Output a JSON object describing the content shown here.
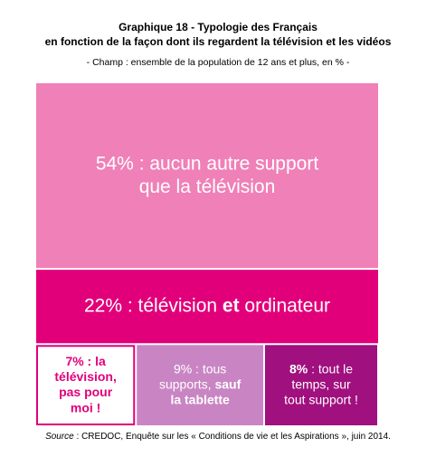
{
  "chart_data": {
    "type": "treemap",
    "title": [
      "Graphique 18 - Typologie des Français",
      "en fonction de la façon dont ils regardent la télévision et les vidéos"
    ],
    "subtitle": "- Champ : ensemble de la population de 12 ans et plus, en % -",
    "source": [
      {
        "text": "Source",
        "italic": true
      },
      {
        "text": " : CREDOC, Enquête sur les « Conditions de vie et les Aspirations », juin 2014.",
        "italic": false
      }
    ],
    "items": [
      {
        "value": 54,
        "value_label": "54%",
        "color": "#f080b8",
        "text_color": "#ffffff",
        "border": null,
        "label_bold": false,
        "lines": [
          [
            {
              "text": " : aucun autre support",
              "bold": false
            }
          ],
          [
            {
              "text": "que la télévision",
              "bold": false
            }
          ]
        ]
      },
      {
        "value": 22,
        "value_label": "22%",
        "color": "#e2007a",
        "text_color": "#ffffff",
        "border": null,
        "label_bold": false,
        "lines": [
          [
            {
              "text": " : télévision ",
              "bold": false
            },
            {
              "text": "et",
              "bold": true
            },
            {
              "text": " ordinateur",
              "bold": false
            }
          ]
        ]
      },
      {
        "value": 7,
        "value_label": "7%",
        "color": "#ffffff",
        "text_color": "#e2007a",
        "border": "#e2007a",
        "label_bold": true,
        "lines": [
          [
            {
              "text": " : la",
              "bold": true
            }
          ],
          [
            {
              "text": "télévision,",
              "bold": true
            }
          ],
          [
            {
              "text": "pas pour",
              "bold": true
            }
          ],
          [
            {
              "text": "moi !",
              "bold": true
            }
          ]
        ]
      },
      {
        "value": 9,
        "value_label": "9%",
        "color": "#c985c3",
        "text_color": "#ffffff",
        "border": null,
        "label_bold": false,
        "lines": [
          [
            {
              "text": " : tous",
              "bold": false
            }
          ],
          [
            {
              "text": "supports, ",
              "bold": false
            },
            {
              "text": "sauf",
              "bold": true
            }
          ],
          [
            {
              "text": "la tablette",
              "bold": true
            }
          ]
        ]
      },
      {
        "value": 8,
        "value_label": "8%",
        "color": "#a0107e",
        "text_color": "#ffffff",
        "border": null,
        "label_bold": true,
        "lines": [
          [
            {
              "text": " : tout le",
              "bold": false
            }
          ],
          [
            {
              "text": "temps, sur",
              "bold": false
            }
          ],
          [
            {
              "text": "tout support !",
              "bold": false
            }
          ]
        ]
      }
    ]
  }
}
